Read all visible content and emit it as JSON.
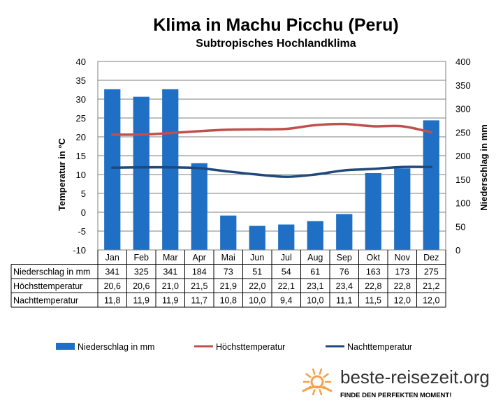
{
  "chart_data": {
    "type": "bar",
    "title": "Klima in Machu Picchu (Peru)",
    "subtitle": "Subtropisches Hochlandklima",
    "categories": [
      "Jan",
      "Feb",
      "Mar",
      "Apr",
      "Mai",
      "Jun",
      "Jul",
      "Aug",
      "Sep",
      "Okt",
      "Nov",
      "Dez"
    ],
    "ylabel_left": "Temperatur in °C",
    "ylabel_right": "Niederschlag in mm",
    "ylim_left": [
      -10,
      40
    ],
    "ylim_right": [
      0,
      400
    ],
    "yticks_left": [
      "40",
      "35",
      "30",
      "25",
      "20",
      "15",
      "10",
      "5",
      "0",
      "-5",
      "-10"
    ],
    "yticks_right": [
      "400",
      "350",
      "300",
      "250",
      "200",
      "150",
      "100",
      "50",
      "0"
    ],
    "grid": true,
    "legend_position": "bottom",
    "series": [
      {
        "name": "Niederschlag in mm",
        "type": "bar",
        "axis": "right",
        "color": "#1f6fc4",
        "values": [
          341,
          325,
          341,
          184,
          73,
          51,
          54,
          61,
          76,
          163,
          173,
          275
        ],
        "labels": [
          "341",
          "325",
          "341",
          "184",
          "73",
          "51",
          "54",
          "61",
          "76",
          "163",
          "173",
          "275"
        ]
      },
      {
        "name": "Höchsttemperatur",
        "type": "line",
        "axis": "left",
        "color": "#c0504d",
        "values": [
          20.6,
          20.6,
          21.0,
          21.5,
          21.9,
          22.0,
          22.1,
          23.1,
          23.4,
          22.8,
          22.8,
          21.2
        ],
        "labels": [
          "20,6",
          "20,6",
          "21,0",
          "21,5",
          "21,9",
          "22,0",
          "22,1",
          "23,1",
          "23,4",
          "22,8",
          "22,8",
          "21,2"
        ]
      },
      {
        "name": "Nachttemperatur",
        "type": "line",
        "axis": "left",
        "color": "#1f497d",
        "values": [
          11.8,
          11.9,
          11.9,
          11.7,
          10.8,
          10.0,
          9.4,
          10.0,
          11.1,
          11.5,
          12.0,
          12.0
        ],
        "labels": [
          "11,8",
          "11,9",
          "11,9",
          "11,7",
          "10,8",
          "10,0",
          "9,4",
          "10,0",
          "11,1",
          "11,5",
          "12,0",
          "12,0"
        ]
      }
    ]
  },
  "branding": {
    "site": "beste-reisezeit.org",
    "tagline": "FINDE DEN PERFEKTEN MOMENT!",
    "logo_color": "#f5a14a",
    "logo_icon": "sun-logo-icon"
  }
}
